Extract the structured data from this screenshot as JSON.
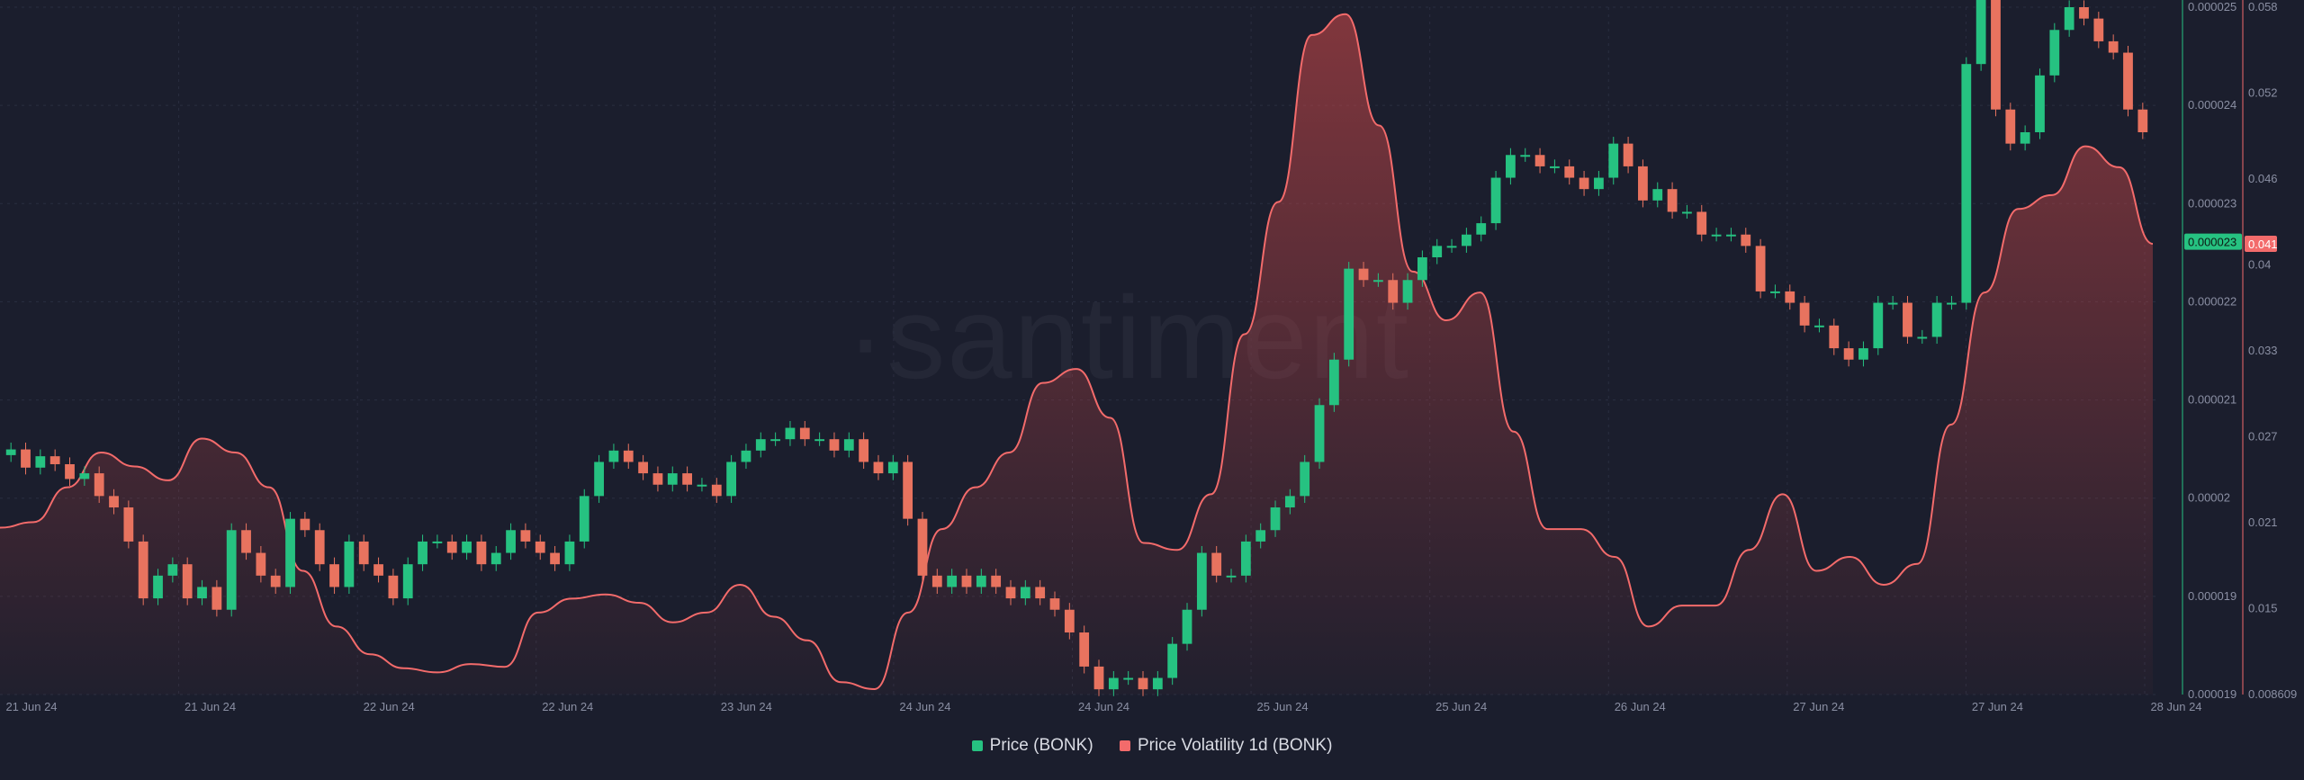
{
  "watermark": "·santiment",
  "colors": {
    "background": "#1b1e2d",
    "up": "#26c281",
    "down": "#e8735f",
    "volatility": "#f36b6b",
    "grid": "#2a2e40",
    "axis_text": "#8a8fa3"
  },
  "legend": [
    {
      "label": "Price (BONK)",
      "color": "#26c281"
    },
    {
      "label": "Price Volatility 1d (BONK)",
      "color": "#f36b6b"
    }
  ],
  "chart_data": {
    "type": "line",
    "grid": true,
    "x_ticks": [
      "21 Jun 24",
      "21 Jun 24",
      "22 Jun 24",
      "22 Jun 24",
      "23 Jun 24",
      "24 Jun 24",
      "24 Jun 24",
      "25 Jun 24",
      "25 Jun 24",
      "26 Jun 24",
      "27 Jun 24",
      "27 Jun 24",
      "28 Jun 24"
    ],
    "price_axis": {
      "ticks": [
        "0.000025",
        "0.000024",
        "0.000023",
        "0.000022",
        "0.000021",
        "0.00002",
        "0.000019",
        "0.000019"
      ],
      "ylim": [
        1.8954e-05,
        2.5e-05
      ],
      "current_label": "0.000023",
      "current_value": 2.2938e-05
    },
    "volatility_axis": {
      "ticks": [
        "0.058",
        "0.052",
        "0.046",
        "0.04",
        "0.033",
        "0.027",
        "0.021",
        "0.015",
        "0.008609"
      ],
      "ylim": [
        0.008609,
        0.058
      ],
      "current_label": "0.041",
      "current_value": 0.041
    },
    "series": [
      {
        "name": "Price (BONK)",
        "kind": "candlestick",
        "close": [
          2.111e-05,
          2.095e-05,
          2.105e-05,
          2.098e-05,
          2.085e-05,
          2.09e-05,
          2.07e-05,
          2.06e-05,
          2.03e-05,
          1.98e-05,
          2e-05,
          2.01e-05,
          1.98e-05,
          1.99e-05,
          1.97e-05,
          2.04e-05,
          2.02e-05,
          2e-05,
          1.99e-05,
          2.05e-05,
          2.04e-05,
          2.01e-05,
          1.99e-05,
          2.03e-05,
          2.01e-05,
          2e-05,
          1.98e-05,
          2.01e-05,
          2.03e-05,
          2.03e-05,
          2.02e-05,
          2.03e-05,
          2.01e-05,
          2.02e-05,
          2.04e-05,
          2.03e-05,
          2.02e-05,
          2.01e-05,
          2.03e-05,
          2.07e-05,
          2.1e-05,
          2.11e-05,
          2.1e-05,
          2.09e-05,
          2.08e-05,
          2.09e-05,
          2.08e-05,
          2.08e-05,
          2.07e-05,
          2.1e-05,
          2.11e-05,
          2.12e-05,
          2.12e-05,
          2.13e-05,
          2.12e-05,
          2.12e-05,
          2.11e-05,
          2.12e-05,
          2.1e-05,
          2.09e-05,
          2.1e-05,
          2.05e-05,
          2e-05,
          1.99e-05,
          2e-05,
          1.99e-05,
          2e-05,
          1.99e-05,
          1.98e-05,
          1.99e-05,
          1.98e-05,
          1.97e-05,
          1.95e-05,
          1.92e-05,
          1.9e-05,
          1.91e-05,
          1.91e-05,
          1.9e-05,
          1.91e-05,
          1.94e-05,
          1.97e-05,
          2.02e-05,
          2e-05,
          2e-05,
          2.03e-05,
          2.04e-05,
          2.06e-05,
          2.07e-05,
          2.1e-05,
          2.15e-05,
          2.19e-05,
          2.27e-05,
          2.26e-05,
          2.26e-05,
          2.24e-05,
          2.26e-05,
          2.28e-05,
          2.29e-05,
          2.29e-05,
          2.3e-05,
          2.31e-05,
          2.35e-05,
          2.37e-05,
          2.37e-05,
          2.36e-05,
          2.36e-05,
          2.35e-05,
          2.34e-05,
          2.35e-05,
          2.38e-05,
          2.36e-05,
          2.33e-05,
          2.34e-05,
          2.32e-05,
          2.32e-05,
          2.3e-05,
          2.3e-05,
          2.3e-05,
          2.29e-05,
          2.25e-05,
          2.25e-05,
          2.24e-05,
          2.22e-05,
          2.22e-05,
          2.2e-05,
          2.19e-05,
          2.2e-05,
          2.24e-05,
          2.24e-05,
          2.21e-05,
          2.21e-05,
          2.24e-05,
          2.24e-05,
          2.45e-05,
          2.53e-05,
          2.41e-05,
          2.38e-05,
          2.39e-05,
          2.44e-05,
          2.48e-05,
          2.5e-05,
          2.49e-05,
          2.47e-05,
          2.46e-05,
          2.41e-05,
          2.39e-05
        ],
        "color_up": "#26c281",
        "color_down": "#e8735f"
      },
      {
        "name": "Price Volatility 1d (BONK)",
        "kind": "area",
        "values": [
          0.0206,
          0.021,
          0.0235,
          0.026,
          0.025,
          0.024,
          0.027,
          0.026,
          0.0235,
          0.0175,
          0.0135,
          0.0115,
          0.0105,
          0.0102,
          0.0108,
          0.0106,
          0.0145,
          0.0155,
          0.0158,
          0.0152,
          0.0138,
          0.0145,
          0.0165,
          0.0142,
          0.0125,
          0.0095,
          0.009,
          0.0145,
          0.0205,
          0.0235,
          0.026,
          0.031,
          0.032,
          0.0285,
          0.0195,
          0.019,
          0.023,
          0.0345,
          0.044,
          0.056,
          0.0575,
          0.0495,
          0.039,
          0.0355,
          0.0375,
          0.0275,
          0.0205,
          0.0205,
          0.0185,
          0.0135,
          0.015,
          0.015,
          0.019,
          0.023,
          0.0175,
          0.0185,
          0.0165,
          0.018,
          0.028,
          0.0375,
          0.0435,
          0.0445,
          0.048,
          0.0465,
          0.041
        ]
      }
    ]
  }
}
